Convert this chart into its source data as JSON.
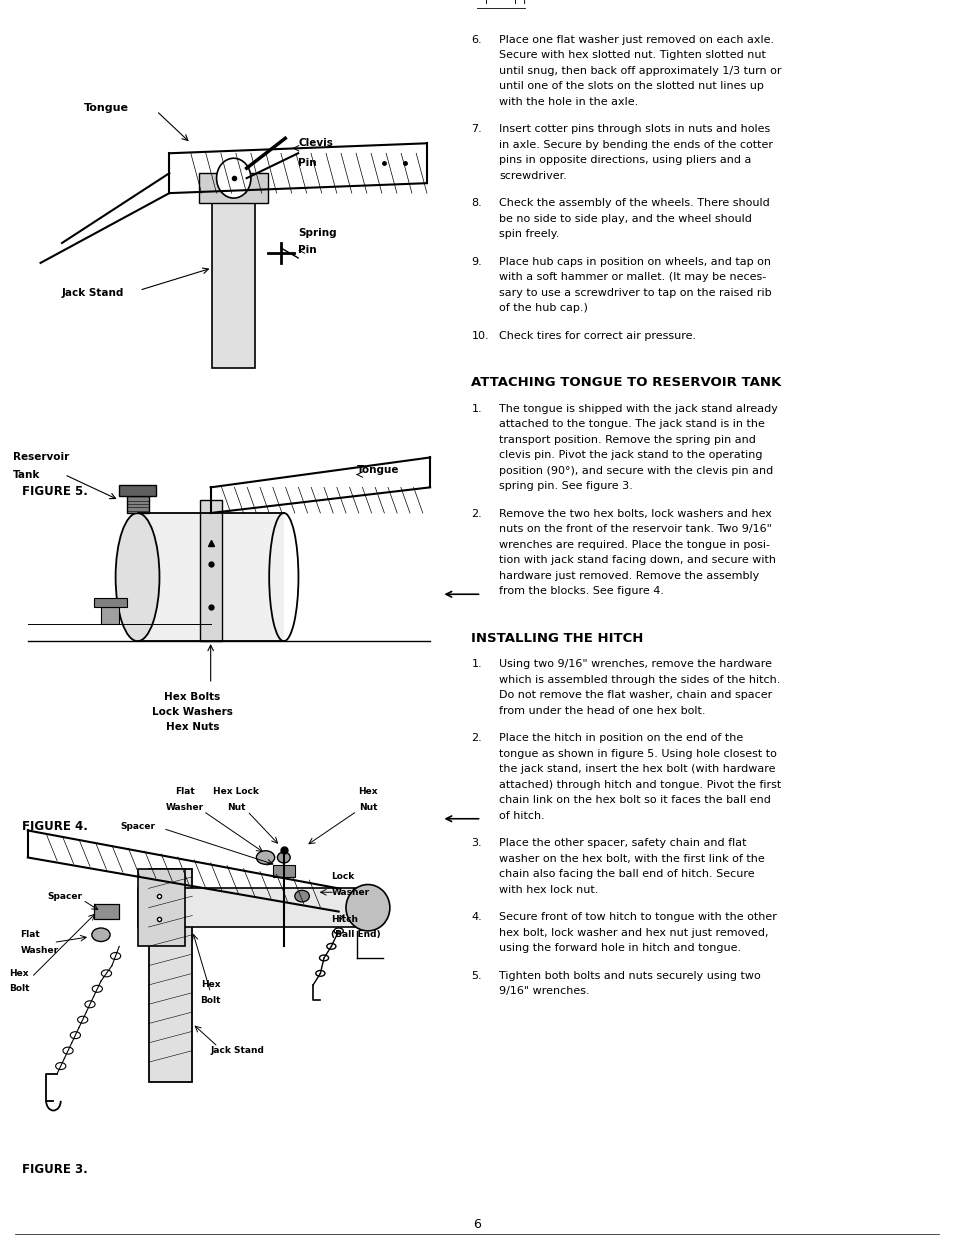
{
  "page_background": "#ffffff",
  "text_color": "#000000",
  "page_width": 9.54,
  "page_height": 12.46,
  "right_col_items_6_10": [
    {
      "num": "6.",
      "text": "Place one flat washer just removed on each axle.\nSecure with hex slotted nut. Tighten slotted nut\nuntil snug, then back off approximately 1/3 turn or\nuntil one of the slots on the slotted nut lines up\nwith the hole in the axle."
    },
    {
      "num": "7.",
      "text": "Insert cotter pins through slots in nuts and holes\nin axle. Secure by bending the ends of the cotter\npins in opposite directions, using pliers and a\nscrewdriver."
    },
    {
      "num": "8.",
      "text": "Check the assembly of the wheels. There should\nbe no side to side play, and the wheel should\nspin freely."
    },
    {
      "num": "9.",
      "text": "Place hub caps in position on wheels, and tap on\nwith a soft hammer or mallet. (It may be neces-\nsary to use a screwdriver to tap on the raised rib\nof the hub cap.)"
    },
    {
      "num": "10.",
      "text": "Check tires for correct air pressure."
    }
  ],
  "section1_heading": "ATTACHING TONGUE TO RESERVOIR TANK",
  "section1_items": [
    {
      "num": "1.",
      "text": "The tongue is shipped with the jack stand already\nattached to the tongue. The jack stand is in the\ntransport position. Remove the spring pin and\nclevis pin. Pivot the jack stand to the operating\nposition (90°), and secure with the clevis pin and\nspring pin. See figure 3."
    },
    {
      "num": "2.",
      "text": "Remove the two hex bolts, lock washers and hex\nnuts on the front of the reservoir tank. Two 9/16\"\nwrenches are required. Place the tongue in posi-\ntion with jack stand facing down, and secure with\nhardware just removed. Remove the assembly\nfrom the blocks. See figure 4."
    }
  ],
  "section2_heading": "INSTALLING THE HITCH",
  "section2_items": [
    {
      "num": "1.",
      "text": "Using two 9/16\" wrenches, remove the hardware\nwhich is assembled through the sides of the hitch.\nDo not remove the flat washer, chain and spacer\nfrom under the head of one hex bolt."
    },
    {
      "num": "2.",
      "text": "Place the hitch in position on the end of the\ntongue as shown in figure 5. Using hole closest to\nthe jack stand, insert the hex bolt (with hardware\nattached) through hitch and tongue. Pivot the first\nchain link on the hex bolt so it faces the ball end\nof hitch."
    },
    {
      "num": "3.",
      "text": "Place the other spacer, safety chain and flat\nwasher on the hex bolt, with the first link of the\nchain also facing the ball end of hitch. Secure\nwith hex lock nut."
    },
    {
      "num": "4.",
      "text": "Secure front of tow hitch to tongue with the other\nhex bolt, lock washer and hex nut just removed,\nusing the forward hole in hitch and tongue."
    },
    {
      "num": "5.",
      "text": "Tighten both bolts and nuts securely using two\n9/16\" wrenches."
    }
  ],
  "figure3_label": "FIGURE 3.",
  "figure4_label": "FIGURE 4.",
  "figure5_label": "FIGURE 5.",
  "page_number": "6"
}
